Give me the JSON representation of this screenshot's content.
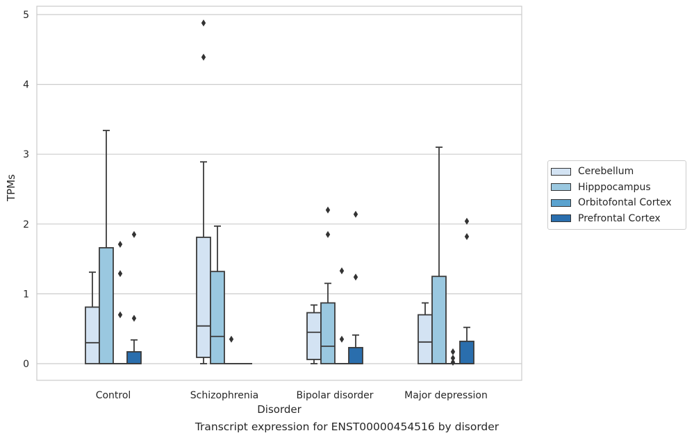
{
  "chart_data": {
    "type": "box",
    "title": "",
    "xlabel": "Disorder",
    "ylabel": "TPMs",
    "caption": "Transcript expression for ENST00000454516 by disorder",
    "ylim": [
      -0.23,
      5.12
    ],
    "yticks": [
      "0",
      "1",
      "2",
      "3",
      "4",
      "5"
    ],
    "categories": [
      "Control",
      "Schizophrenia",
      "Bipolar disorder",
      "Major depression"
    ],
    "grid": true,
    "legend_position": "right",
    "series": [
      {
        "name": "Cerebellum",
        "color": "#d3e3f3",
        "boxes": [
          {
            "whislo": 0,
            "q1": 0,
            "med": 0.3,
            "q3": 0.81,
            "whishi": 1.31,
            "fliers": []
          },
          {
            "whislo": 0,
            "q1": 0.09,
            "med": 0.54,
            "q3": 1.81,
            "whishi": 2.89,
            "fliers": [
              4.39,
              4.88
            ]
          },
          {
            "whislo": 0,
            "q1": 0.06,
            "med": 0.45,
            "q3": 0.73,
            "whishi": 0.84,
            "fliers": []
          },
          {
            "whislo": 0,
            "q1": 0,
            "med": 0.31,
            "q3": 0.7,
            "whishi": 0.87,
            "fliers": []
          }
        ]
      },
      {
        "name": "Hipppocampus",
        "color": "#9ac8e0",
        "boxes": [
          {
            "whislo": 0,
            "q1": 0,
            "med": 0,
            "q3": 1.66,
            "whishi": 3.34,
            "fliers": []
          },
          {
            "whislo": 0,
            "q1": 0,
            "med": 0.39,
            "q3": 1.32,
            "whishi": 1.97,
            "fliers": []
          },
          {
            "whislo": 0,
            "q1": 0,
            "med": 0.25,
            "q3": 0.87,
            "whishi": 1.15,
            "fliers": [
              1.85,
              2.2
            ]
          },
          {
            "whislo": 0,
            "q1": 0,
            "med": 0,
            "q3": 1.25,
            "whishi": 3.1,
            "fliers": []
          }
        ]
      },
      {
        "name": "Orbitofontal Cortex",
        "color": "#5ba3cf",
        "boxes": [
          {
            "whislo": 0,
            "q1": 0,
            "med": 0,
            "q3": 0,
            "whishi": 0,
            "fliers": [
              0.7,
              1.29,
              1.71
            ]
          },
          {
            "whislo": 0,
            "q1": 0,
            "med": 0,
            "q3": 0,
            "whishi": 0,
            "fliers": [
              0.35
            ]
          },
          {
            "whislo": 0,
            "q1": 0,
            "med": 0,
            "q3": 0,
            "whishi": 0,
            "fliers": [
              0.35,
              1.33
            ]
          },
          {
            "whislo": 0,
            "q1": 0,
            "med": 0,
            "q3": 0,
            "whishi": 0,
            "fliers": [
              0.02,
              0.08,
              0.17
            ]
          }
        ]
      },
      {
        "name": "Prefrontal Cortex",
        "color": "#2a6ead",
        "boxes": [
          {
            "whislo": 0,
            "q1": 0,
            "med": 0,
            "q3": 0.17,
            "whishi": 0.34,
            "fliers": [
              0.65,
              1.85
            ]
          },
          {
            "whislo": 0,
            "q1": 0,
            "med": 0,
            "q3": 0,
            "whishi": 0,
            "fliers": []
          },
          {
            "whislo": 0,
            "q1": 0,
            "med": 0,
            "q3": 0.23,
            "whishi": 0.41,
            "fliers": [
              1.24,
              2.14
            ]
          },
          {
            "whislo": 0,
            "q1": 0,
            "med": 0,
            "q3": 0.32,
            "whishi": 0.52,
            "fliers": [
              1.82,
              2.04
            ]
          }
        ]
      }
    ]
  }
}
